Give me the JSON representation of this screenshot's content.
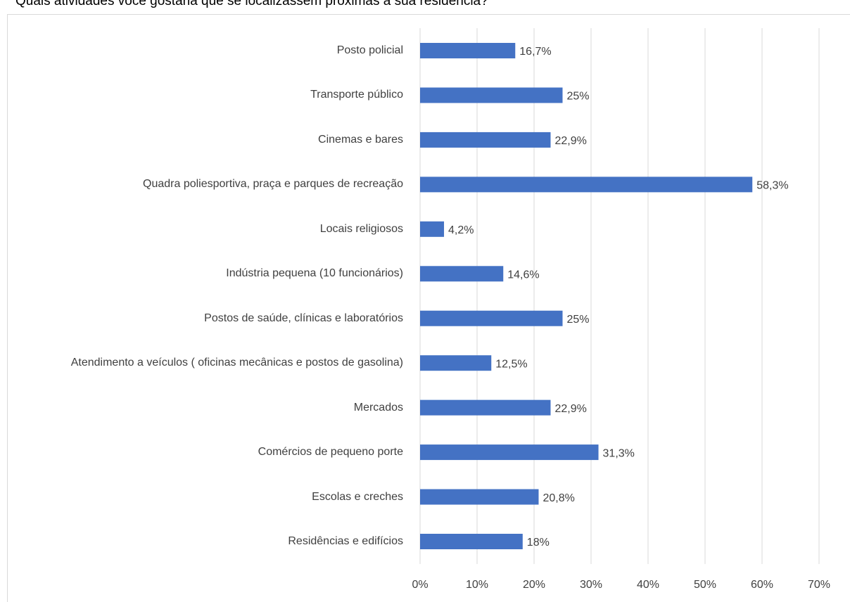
{
  "chart_data": {
    "type": "barh",
    "title": "Quais atividades você gostaria que se localizassem próximas à sua residência?",
    "categories": [
      "Posto policial",
      "Transporte público",
      "Cinemas e bares",
      "Quadra poliesportiva, praça e parques de recreação",
      "Locais religiosos",
      "Indústria pequena (10 funcionários)",
      "Postos de saúde, clínicas e laboratórios",
      "Atendimento a veículos ( oficinas mecânicas e postos de gasolina)",
      "Mercados",
      "Comércios de pequeno porte",
      "Escolas e creches",
      "Residências e edifícios"
    ],
    "values": [
      16.7,
      25,
      22.9,
      58.3,
      4.2,
      14.6,
      25,
      12.5,
      22.9,
      31.3,
      20.8,
      18
    ],
    "value_labels": [
      "16,7%",
      "25%",
      "22,9%",
      "58,3%",
      "4,2%",
      "14,6%",
      "25%",
      "12,5%",
      "22,9%",
      "31,3%",
      "20,8%",
      "18%"
    ],
    "color": "#4472c4",
    "xlim": [
      0,
      70
    ],
    "xticks": [
      {
        "value": 0,
        "label": "0%"
      },
      {
        "value": 10,
        "label": "10%"
      },
      {
        "value": 20,
        "label": "20%"
      },
      {
        "value": 30,
        "label": "30%"
      },
      {
        "value": 40,
        "label": "40%"
      },
      {
        "value": 50,
        "label": "50%"
      },
      {
        "value": 60,
        "label": "60%"
      },
      {
        "value": 70,
        "label": "70%"
      }
    ],
    "grid": true
  }
}
